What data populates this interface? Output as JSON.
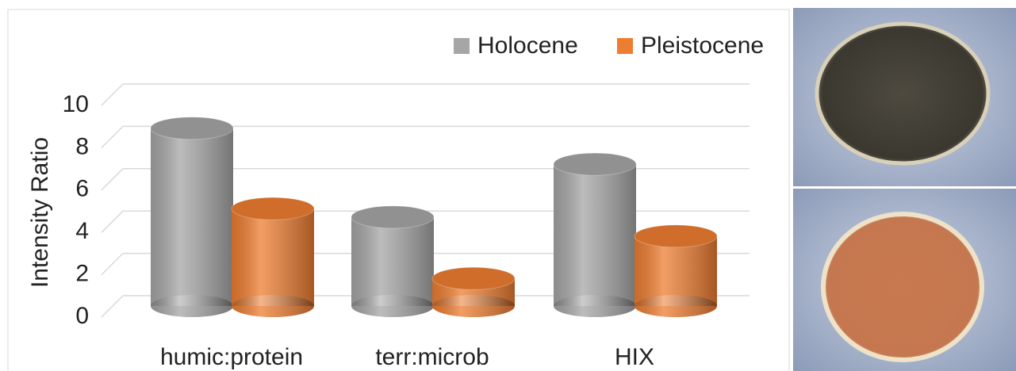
{
  "chart_data": {
    "type": "bar3d",
    "y_label": "Intensity Ratio",
    "categories": [
      "humic:protein",
      "terr:microb",
      "HIX"
    ],
    "series": [
      {
        "name": "Holocene",
        "color": "#a6a6a6",
        "values": [
          8.4,
          4.2,
          6.7
        ]
      },
      {
        "name": "Pleistocene",
        "color": "#ed7d31",
        "values": [
          4.6,
          1.3,
          3.3
        ]
      }
    ],
    "ylim": [
      0,
      10
    ],
    "yticks": [
      0,
      2,
      4,
      6,
      8,
      10
    ],
    "grid": true,
    "legend": "top"
  }
}
